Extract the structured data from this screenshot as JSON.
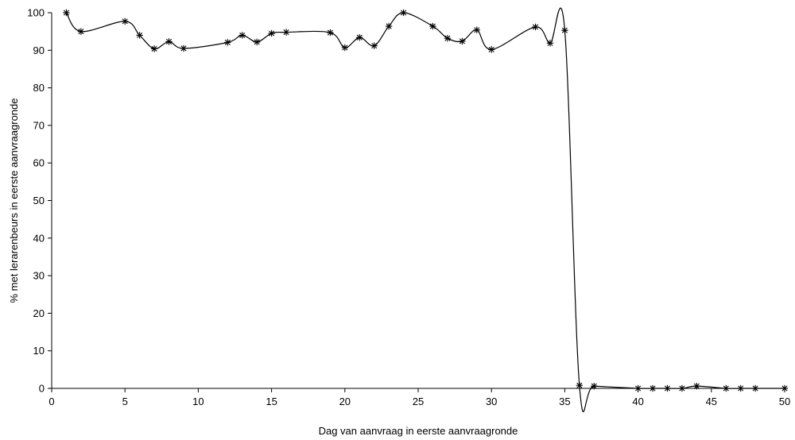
{
  "chart_data": {
    "type": "line",
    "title": "",
    "xlabel": "Dag van aanvraag in eerste aanvraagronde",
    "ylabel": "% met lerarenbeurs in eerste aanvraagronde",
    "xlim": [
      0,
      50
    ],
    "ylim": [
      0,
      100
    ],
    "xticks": [
      0,
      5,
      10,
      15,
      20,
      25,
      30,
      35,
      40,
      45,
      50
    ],
    "yticks": [
      0,
      10,
      20,
      30,
      40,
      50,
      60,
      70,
      80,
      90,
      100
    ],
    "grid": false,
    "smooth": true,
    "marker": "asterisk",
    "series": [
      {
        "name": "",
        "x": [
          1,
          2,
          5,
          6,
          7,
          8,
          9,
          12,
          13,
          14,
          15,
          16,
          19,
          20,
          21,
          22,
          23,
          24,
          26,
          27,
          28,
          29,
          30,
          33,
          34,
          35,
          36,
          37,
          40,
          41,
          42,
          43,
          44,
          46,
          47,
          48,
          50
        ],
        "y": [
          100,
          95,
          97.7,
          94,
          90.4,
          92.3,
          90.5,
          92.1,
          94,
          92.2,
          94.5,
          94.8,
          94.7,
          90.7,
          93.4,
          91.2,
          96.4,
          100,
          96.4,
          93.2,
          92.4,
          95.4,
          90.2,
          96.2,
          91.9,
          95.3,
          0.8,
          0.6,
          0,
          0,
          0,
          0,
          0.6,
          0,
          0,
          0,
          0
        ]
      }
    ]
  }
}
